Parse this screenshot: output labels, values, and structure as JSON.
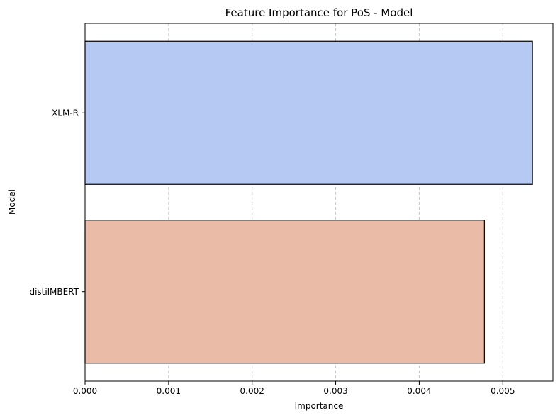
{
  "chart_data": {
    "type": "bar",
    "orientation": "horizontal",
    "title": "Feature Importance for PoS - Model",
    "xlabel": "Importance",
    "ylabel": "Model",
    "categories": [
      "XLM-R",
      "distilMBERT"
    ],
    "values": [
      0.005355,
      0.00478
    ],
    "colors": [
      "#b5c9f2",
      "#eabba6"
    ],
    "xlim": [
      0.0,
      0.0056
    ],
    "xticks": [
      "0.000",
      "0.001",
      "0.002",
      "0.003",
      "0.004",
      "0.005"
    ],
    "grid": "x-dashed"
  }
}
